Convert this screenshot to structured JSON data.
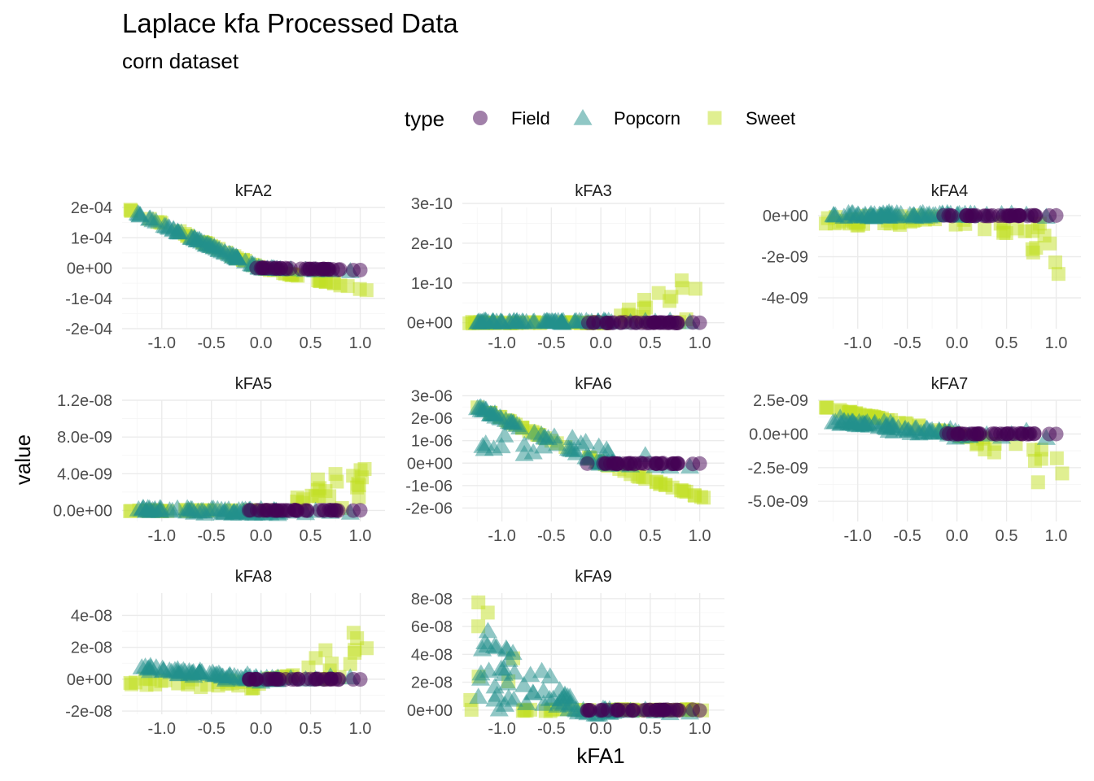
{
  "chart_data": {
    "type": "scatter",
    "title": "Laplace kfa Processed Data",
    "subtitle": "corn dataset",
    "xlabel": "kFA1",
    "ylabel": "value",
    "legend": {
      "title": "type",
      "placement": "top",
      "entries": [
        {
          "name": "Field",
          "shape": "circle",
          "color": "#440154"
        },
        {
          "name": "Popcorn",
          "shape": "triangle",
          "color": "#21908C"
        },
        {
          "name": "Sweet",
          "shape": "square",
          "color": "#C2DF23"
        }
      ]
    },
    "xlim": [
      -1.4,
      1.25
    ],
    "x_ticks": [
      -1.0,
      -0.5,
      0.0,
      0.5,
      1.0
    ],
    "x_tick_labels": [
      "-1.0",
      "-0.5",
      "0.0",
      "0.5",
      "1.0"
    ],
    "grid": true,
    "panels": [
      {
        "label": "kFA2",
        "ylim": [
          -0.0002,
          0.0002
        ],
        "y_ticks": [
          -0.0002,
          -0.0001,
          0,
          0.0001,
          0.0002
        ],
        "y_tick_labels": [
          "-2e-04",
          "-1e-04",
          "0e+00",
          "1e-04",
          "2e-04"
        ]
      },
      {
        "label": "kFA3",
        "ylim": [
          -1.5e-11,
          2.9e-10
        ],
        "y_ticks": [
          0,
          1e-10,
          2e-10,
          3e-10
        ],
        "y_tick_labels": [
          "0e+00",
          "1e-10",
          "2e-10",
          "3e-10"
        ]
      },
      {
        "label": "kFA4",
        "ylim": [
          -5.5e-09,
          4e-10
        ],
        "y_ticks": [
          -4e-09,
          -2e-09,
          0
        ],
        "y_tick_labels": [
          "-4e-09",
          "-2e-09",
          "0e+00"
        ]
      },
      {
        "label": "kFA5",
        "ylim": [
          -1.2e-09,
          1.2e-08
        ],
        "y_ticks": [
          0,
          4e-09,
          8e-09,
          1.2e-08
        ],
        "y_tick_labels": [
          "0.0e+00",
          "4.0e-09",
          "8.0e-09",
          "1.2e-08"
        ]
      },
      {
        "label": "kFA6",
        "ylim": [
          -2.6e-06,
          2.8e-06
        ],
        "y_ticks": [
          -2e-06,
          -1e-06,
          0,
          1e-06,
          2e-06,
          3e-06
        ],
        "y_tick_labels": [
          "-2e-06",
          "-1e-06",
          "0e+00",
          "1e-06",
          "2e-06",
          "3e-06"
        ]
      },
      {
        "label": "kFA7",
        "ylim": [
          -6.5e-09,
          2.5e-09
        ],
        "y_ticks": [
          -5e-09,
          -2.5e-09,
          0,
          2.5e-09
        ],
        "y_tick_labels": [
          "-5.0e-09",
          "-2.5e-09",
          "0.0e+00",
          "2.5e-09"
        ]
      },
      {
        "label": "kFA8",
        "ylim": [
          -2.2e-08,
          5.4e-08
        ],
        "y_ticks": [
          -2e-08,
          0,
          2e-08,
          4e-08
        ],
        "y_tick_labels": [
          "-2e-08",
          "0e+00",
          "2e-08",
          "4e-08"
        ]
      },
      {
        "label": "kFA9",
        "ylim": [
          -3e-09,
          8.4e-08
        ],
        "y_ticks": [
          0,
          2e-08,
          4e-08,
          6e-08,
          8e-08
        ],
        "y_tick_labels": [
          "0e+00",
          "2e-08",
          "4e-08",
          "6e-08",
          "8e-08"
        ]
      }
    ]
  }
}
